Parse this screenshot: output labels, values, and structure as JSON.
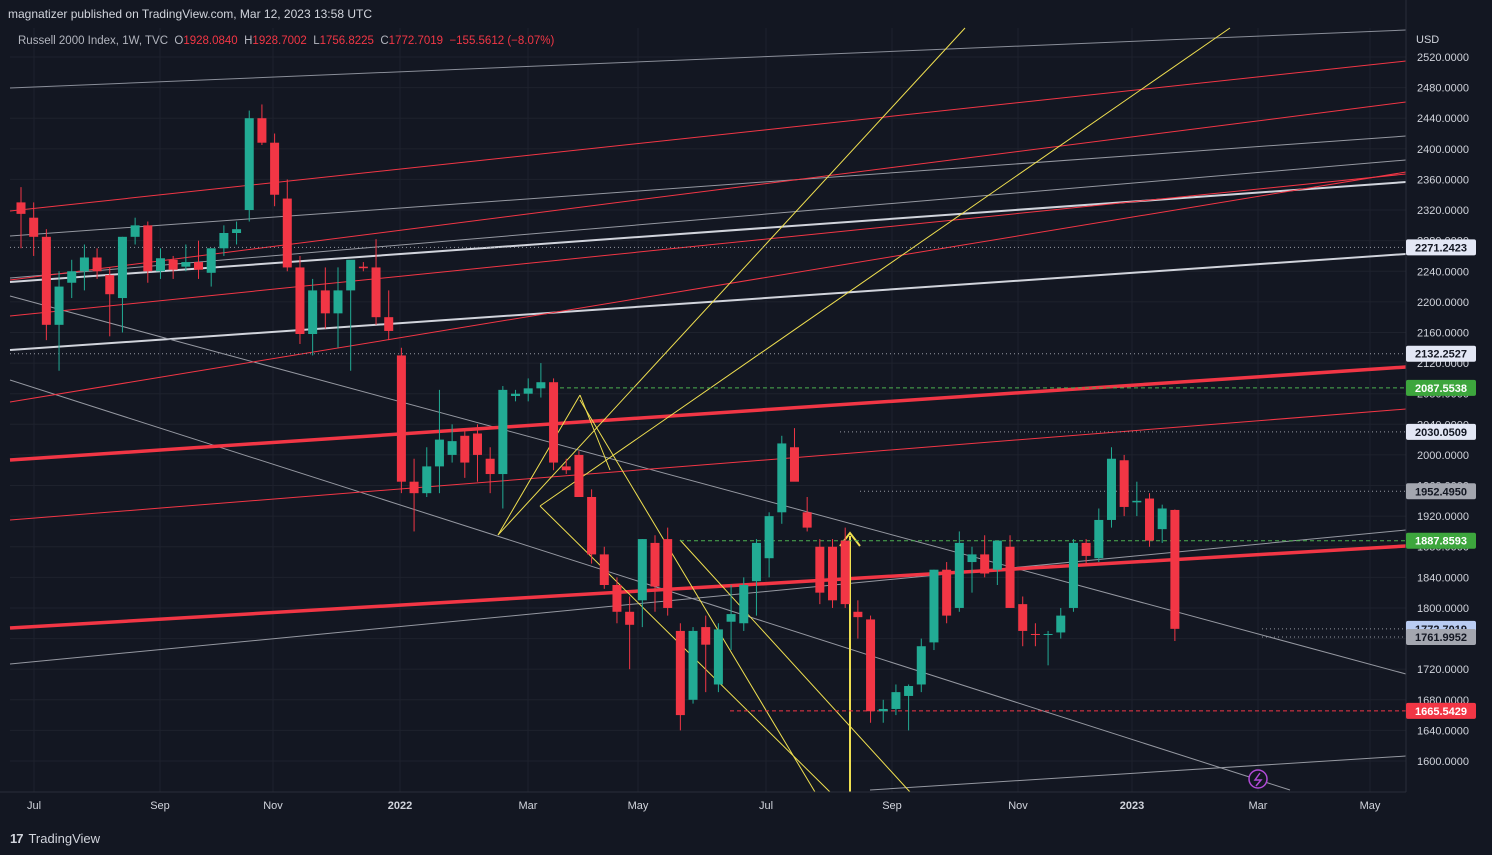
{
  "header": {
    "published": "magnatizer published on TradingView.com, Mar 12, 2023 13:58 UTC"
  },
  "legend": {
    "symbol": "Russell 2000 Index, 1W, TVC",
    "o_label": "O",
    "o_value": "1928.0840",
    "h_label": "H",
    "h_value": "1928.7002",
    "l_label": "L",
    "l_value": "1756.8225",
    "c_label": "C",
    "c_value": "1772.7019",
    "change": "−155.5612 (−8.07%)"
  },
  "footer": {
    "brand": "TradingView",
    "logo": "17"
  },
  "chart_data": {
    "type": "candlestick",
    "currency": "USD",
    "ylim": [
      1570,
      2530
    ],
    "y_ticks": [
      "2520.0000",
      "2480.0000",
      "2440.0000",
      "2400.0000",
      "2360.0000",
      "2320.0000",
      "2280.0000",
      "2240.0000",
      "2200.0000",
      "2160.0000",
      "2120.0000",
      "2080.0000",
      "2040.0000",
      "2000.0000",
      "1960.0000",
      "1920.0000",
      "1880.0000",
      "1840.0000",
      "1800.0000",
      "1760.0000",
      "1720.0000",
      "1680.0000",
      "1640.0000",
      "1600.0000"
    ],
    "x_ticks": [
      "Jul",
      "Sep",
      "Nov",
      "2022",
      "Mar",
      "May",
      "Jul",
      "Sep",
      "Nov",
      "2023",
      "Mar",
      "May"
    ],
    "price_labels": [
      {
        "value": 2271.2423,
        "text": "2271.2423",
        "style": "light"
      },
      {
        "value": 2132.2527,
        "text": "2132.2527",
        "style": "light"
      },
      {
        "value": 2087.5538,
        "text": "2087.5538",
        "style": "green"
      },
      {
        "value": 2030.0509,
        "text": "2030.0509",
        "style": "light"
      },
      {
        "value": 1952.495,
        "text": "1952.4950",
        "style": "gray"
      },
      {
        "value": 1887.8593,
        "text": "1887.8593",
        "style": "green"
      },
      {
        "value": 1772.7019,
        "text": "1772.7019",
        "style": "blue"
      },
      {
        "value": 1761.9952,
        "text": "1761.9952",
        "style": "gray"
      },
      {
        "value": 1665.5429,
        "text": "1665.5429",
        "style": "red"
      }
    ],
    "candles": [
      {
        "o": 2330,
        "h": 2350,
        "l": 2270,
        "c": 2315
      },
      {
        "o": 2310,
        "h": 2330,
        "l": 2260,
        "c": 2285
      },
      {
        "o": 2285,
        "h": 2295,
        "l": 2150,
        "c": 2170
      },
      {
        "o": 2170,
        "h": 2240,
        "l": 2110,
        "c": 2220
      },
      {
        "o": 2225,
        "h": 2255,
        "l": 2205,
        "c": 2240
      },
      {
        "o": 2240,
        "h": 2275,
        "l": 2215,
        "c": 2258
      },
      {
        "o": 2258,
        "h": 2270,
        "l": 2230,
        "c": 2240
      },
      {
        "o": 2235,
        "h": 2245,
        "l": 2155,
        "c": 2210
      },
      {
        "o": 2205,
        "h": 2285,
        "l": 2160,
        "c": 2285
      },
      {
        "o": 2285,
        "h": 2310,
        "l": 2275,
        "c": 2300
      },
      {
        "o": 2300,
        "h": 2305,
        "l": 2225,
        "c": 2240
      },
      {
        "o": 2240,
        "h": 2270,
        "l": 2230,
        "c": 2257
      },
      {
        "o": 2255,
        "h": 2260,
        "l": 2230,
        "c": 2242
      },
      {
        "o": 2246,
        "h": 2275,
        "l": 2240,
        "c": 2252
      },
      {
        "o": 2252,
        "h": 2280,
        "l": 2230,
        "c": 2242
      },
      {
        "o": 2238,
        "h": 2270,
        "l": 2220,
        "c": 2270
      },
      {
        "o": 2270,
        "h": 2300,
        "l": 2260,
        "c": 2290
      },
      {
        "o": 2290,
        "h": 2305,
        "l": 2275,
        "c": 2295
      },
      {
        "o": 2320,
        "h": 2450,
        "l": 2305,
        "c": 2440
      },
      {
        "o": 2440,
        "h": 2458,
        "l": 2405,
        "c": 2408
      },
      {
        "o": 2408,
        "h": 2420,
        "l": 2325,
        "c": 2340
      },
      {
        "o": 2335,
        "h": 2360,
        "l": 2240,
        "c": 2245
      },
      {
        "o": 2245,
        "h": 2260,
        "l": 2145,
        "c": 2158
      },
      {
        "o": 2158,
        "h": 2230,
        "l": 2130,
        "c": 2215
      },
      {
        "o": 2215,
        "h": 2245,
        "l": 2165,
        "c": 2185
      },
      {
        "o": 2185,
        "h": 2245,
        "l": 2140,
        "c": 2215
      },
      {
        "o": 2215,
        "h": 2250,
        "l": 2110,
        "c": 2255
      },
      {
        "o": 2246,
        "h": 2252,
        "l": 2240,
        "c": 2244
      },
      {
        "o": 2245,
        "h": 2282,
        "l": 2170,
        "c": 2180
      },
      {
        "o": 2180,
        "h": 2215,
        "l": 2150,
        "c": 2162
      },
      {
        "o": 2130,
        "h": 2140,
        "l": 1950,
        "c": 1965
      },
      {
        "o": 1965,
        "h": 1995,
        "l": 1900,
        "c": 1950
      },
      {
        "o": 1950,
        "h": 2010,
        "l": 1945,
        "c": 1985
      },
      {
        "o": 1985,
        "h": 2085,
        "l": 1950,
        "c": 2020
      },
      {
        "o": 2000,
        "h": 2040,
        "l": 1990,
        "c": 2018
      },
      {
        "o": 2025,
        "h": 2035,
        "l": 1970,
        "c": 1990
      },
      {
        "o": 2028,
        "h": 2040,
        "l": 1965,
        "c": 2000
      },
      {
        "o": 1995,
        "h": 2010,
        "l": 1950,
        "c": 1975
      },
      {
        "o": 1975,
        "h": 2090,
        "l": 1930,
        "c": 2085
      },
      {
        "o": 2077,
        "h": 2085,
        "l": 2070,
        "c": 2080
      },
      {
        "o": 2080,
        "h": 2100,
        "l": 2070,
        "c": 2087
      },
      {
        "o": 2087,
        "h": 2120,
        "l": 2075,
        "c": 2095
      },
      {
        "o": 2095,
        "h": 2100,
        "l": 1980,
        "c": 1990
      },
      {
        "o": 1985,
        "h": 1995,
        "l": 1975,
        "c": 1980
      },
      {
        "o": 2000,
        "h": 2005,
        "l": 1950,
        "c": 1945
      },
      {
        "o": 1945,
        "h": 1955,
        "l": 1858,
        "c": 1870
      },
      {
        "o": 1870,
        "h": 1880,
        "l": 1825,
        "c": 1830
      },
      {
        "o": 1830,
        "h": 1840,
        "l": 1780,
        "c": 1795
      },
      {
        "o": 1795,
        "h": 1815,
        "l": 1720,
        "c": 1778
      },
      {
        "o": 1810,
        "h": 1890,
        "l": 1775,
        "c": 1890
      },
      {
        "o": 1885,
        "h": 1895,
        "l": 1795,
        "c": 1828
      },
      {
        "o": 1890,
        "h": 1905,
        "l": 1790,
        "c": 1800
      },
      {
        "o": 1770,
        "h": 1780,
        "l": 1640,
        "c": 1660
      },
      {
        "o": 1680,
        "h": 1775,
        "l": 1675,
        "c": 1770
      },
      {
        "o": 1775,
        "h": 1790,
        "l": 1690,
        "c": 1752
      },
      {
        "o": 1700,
        "h": 1780,
        "l": 1690,
        "c": 1772
      },
      {
        "o": 1782,
        "h": 1830,
        "l": 1745,
        "c": 1792
      },
      {
        "o": 1780,
        "h": 1840,
        "l": 1770,
        "c": 1830
      },
      {
        "o": 1835,
        "h": 1890,
        "l": 1790,
        "c": 1885
      },
      {
        "o": 1865,
        "h": 1925,
        "l": 1840,
        "c": 1920
      },
      {
        "o": 1925,
        "h": 2025,
        "l": 1910,
        "c": 2015
      },
      {
        "o": 2010,
        "h": 2035,
        "l": 1970,
        "c": 1965
      },
      {
        "o": 1925,
        "h": 1945,
        "l": 1900,
        "c": 1905
      },
      {
        "o": 1880,
        "h": 1890,
        "l": 1805,
        "c": 1820
      },
      {
        "o": 1880,
        "h": 1890,
        "l": 1800,
        "c": 1810
      },
      {
        "o": 1888,
        "h": 1905,
        "l": 1800,
        "c": 1805
      },
      {
        "o": 1795,
        "h": 1810,
        "l": 1760,
        "c": 1788
      },
      {
        "o": 1785,
        "h": 1790,
        "l": 1650,
        "c": 1665
      },
      {
        "o": 1665,
        "h": 1680,
        "l": 1650,
        "c": 1668
      },
      {
        "o": 1668,
        "h": 1700,
        "l": 1660,
        "c": 1690
      },
      {
        "o": 1685,
        "h": 1700,
        "l": 1640,
        "c": 1698
      },
      {
        "o": 1700,
        "h": 1760,
        "l": 1690,
        "c": 1750
      },
      {
        "o": 1755,
        "h": 1850,
        "l": 1745,
        "c": 1850
      },
      {
        "o": 1850,
        "h": 1860,
        "l": 1780,
        "c": 1790
      },
      {
        "o": 1800,
        "h": 1900,
        "l": 1795,
        "c": 1885
      },
      {
        "o": 1860,
        "h": 1880,
        "l": 1820,
        "c": 1870
      },
      {
        "o": 1870,
        "h": 1895,
        "l": 1840,
        "c": 1845
      },
      {
        "o": 1850,
        "h": 1880,
        "l": 1830,
        "c": 1888
      },
      {
        "o": 1880,
        "h": 1895,
        "l": 1800,
        "c": 1800
      },
      {
        "o": 1805,
        "h": 1815,
        "l": 1750,
        "c": 1770
      },
      {
        "o": 1766,
        "h": 1780,
        "l": 1750,
        "c": 1765
      },
      {
        "o": 1765,
        "h": 1770,
        "l": 1725,
        "c": 1766
      },
      {
        "o": 1768,
        "h": 1800,
        "l": 1760,
        "c": 1790
      },
      {
        "o": 1800,
        "h": 1890,
        "l": 1795,
        "c": 1885
      },
      {
        "o": 1885,
        "h": 1890,
        "l": 1855,
        "c": 1868
      },
      {
        "o": 1865,
        "h": 1930,
        "l": 1860,
        "c": 1915
      },
      {
        "o": 1915,
        "h": 2010,
        "l": 1905,
        "c": 1995
      },
      {
        "o": 1993,
        "h": 2000,
        "l": 1920,
        "c": 1932
      },
      {
        "o": 1938,
        "h": 1965,
        "l": 1920,
        "c": 1940
      },
      {
        "o": 1943,
        "h": 1950,
        "l": 1880,
        "c": 1888
      },
      {
        "o": 1903,
        "h": 1935,
        "l": 1885,
        "c": 1930
      },
      {
        "o": 1928.084,
        "h": 1928.7002,
        "l": 1756.8225,
        "c": 1772.7019
      }
    ],
    "colors": {
      "up": "#22ab94",
      "down": "#f23645",
      "background": "#131722",
      "grid": "#1e222d",
      "yellow": "#f0e050",
      "white_line": "#b2b5be"
    }
  }
}
